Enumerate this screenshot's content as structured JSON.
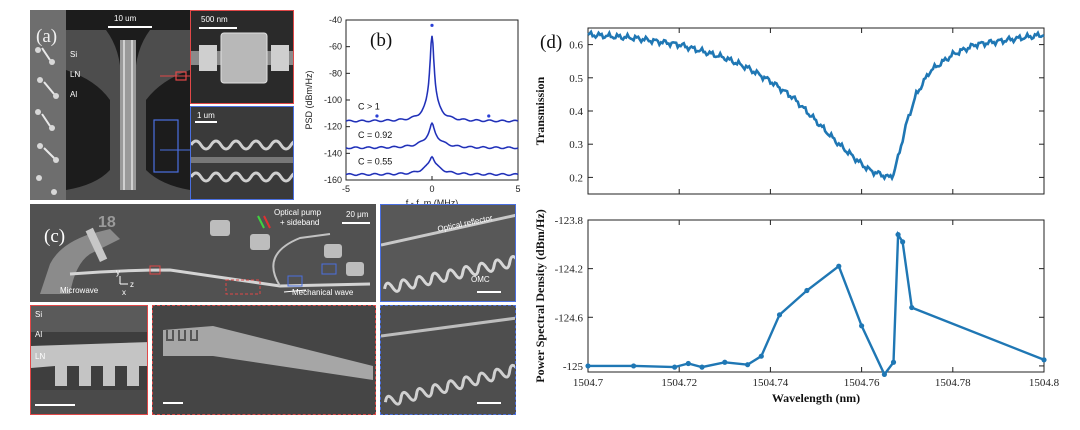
{
  "panels": {
    "a": {
      "label": "(a)",
      "layers": [
        "Si",
        "LN",
        "Al"
      ],
      "scale_main": "10 um",
      "scale_zoom1": "500 nm",
      "scale_zoom2": "1 um"
    },
    "b": {
      "label": "(b)",
      "traces": [
        "C > 1",
        "C = 0.92",
        "C = 0.55"
      ]
    },
    "c": {
      "label": "(c)",
      "device_number": "18",
      "scale": "20 μm",
      "optical_pump": "Optical pump",
      "sideband": "+ sideband",
      "microwave": "Microwave",
      "mechanical_wave": "Mechanical wave",
      "optical_reflector": "Optical reflector",
      "omc": "OMC",
      "axis_x": "x",
      "axis_y": "y",
      "axis_z": "z",
      "layers": [
        "Si",
        "Al",
        "LN"
      ]
    },
    "d": {
      "label": "(d)"
    }
  },
  "chart_data": [
    {
      "type": "line",
      "panel": "b",
      "xlabel": "f - f_m (MHz)",
      "ylabel": "PSD (dBm/Hz)",
      "xlim": [
        -5,
        5
      ],
      "ylim": [
        -160,
        -40
      ],
      "xticks": [
        -5,
        0,
        5
      ],
      "yticks": [
        -160,
        -140,
        -120,
        -100,
        -80,
        -60,
        -40
      ],
      "series": [
        {
          "name": "C > 1",
          "baseline": -116,
          "peak_x": 0,
          "peak": -42,
          "color": "#2a3fd6"
        },
        {
          "name": "C = 0.92",
          "baseline": -136,
          "peak_x": 0,
          "peak": -118,
          "color": "#2a3fd6"
        },
        {
          "name": "C = 0.55",
          "baseline": -156,
          "peak_x": 0,
          "peak": -142,
          "color": "#2a3fd6"
        }
      ]
    },
    {
      "type": "line",
      "panel": "d-top",
      "ylabel": "Transmission",
      "xlim": [
        1504.7,
        1504.8
      ],
      "ylim": [
        0.15,
        0.65
      ],
      "yticks": [
        0.2,
        0.3,
        0.4,
        0.5,
        0.6
      ],
      "x": [
        1504.7,
        1504.71,
        1504.72,
        1504.73,
        1504.735,
        1504.74,
        1504.745,
        1504.75,
        1504.755,
        1504.76,
        1504.762,
        1504.764,
        1504.766,
        1504.767,
        1504.768,
        1504.77,
        1504.772,
        1504.775,
        1504.78,
        1504.785,
        1504.79,
        1504.795,
        1504.8
      ],
      "values": [
        0.63,
        0.62,
        0.6,
        0.56,
        0.53,
        0.49,
        0.44,
        0.37,
        0.3,
        0.24,
        0.22,
        0.21,
        0.2,
        0.21,
        0.26,
        0.37,
        0.45,
        0.52,
        0.57,
        0.6,
        0.61,
        0.62,
        0.63
      ],
      "color": "#1f77b4"
    },
    {
      "type": "line",
      "panel": "d-bottom",
      "xlabel": "Wavelength (nm)",
      "ylabel": "Power Spectral Density (dBm/Hz)",
      "xlim": [
        1504.7,
        1504.8
      ],
      "ylim": [
        -125.05,
        -123.8
      ],
      "xticks": [
        1504.7,
        1504.72,
        1504.74,
        1504.76,
        1504.78,
        1504.8
      ],
      "yticks": [
        -125,
        -124.6,
        -124.2,
        -123.8
      ],
      "x": [
        1504.7,
        1504.71,
        1504.719,
        1504.722,
        1504.725,
        1504.73,
        1504.735,
        1504.738,
        1504.742,
        1504.748,
        1504.755,
        1504.76,
        1504.765,
        1504.767,
        1504.768,
        1504.769,
        1504.771,
        1504.8
      ],
      "values": [
        -125.0,
        -125.0,
        -125.01,
        -124.98,
        -125.01,
        -124.97,
        -124.99,
        -124.92,
        -124.58,
        -124.38,
        -124.18,
        -124.67,
        -125.07,
        -124.97,
        -123.92,
        -123.98,
        -124.52,
        -124.95
      ],
      "color": "#1f77b4"
    }
  ]
}
